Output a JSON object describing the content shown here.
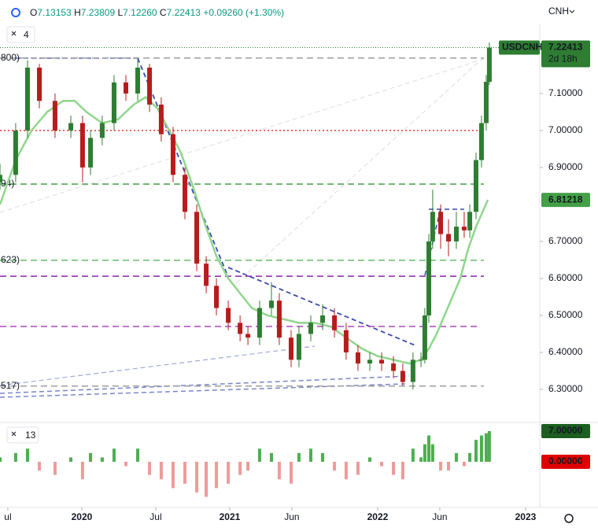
{
  "header": {
    "open": {
      "prefix": "O",
      "value": "7.13153"
    },
    "high": {
      "prefix": "H",
      "value": "7.23809"
    },
    "low": {
      "prefix": "L",
      "value": "7.12260"
    },
    "close": {
      "prefix": "C",
      "value": "7.22413"
    },
    "change": "+0.09260",
    "change_pct": "(+1.30%)",
    "currency": "CNH",
    "layers": "4"
  },
  "chart_data": {
    "type": "candlestick",
    "symbol": "USDCNH",
    "countdown": "2d 18h",
    "x": [
      2019.447,
      2019.553,
      2019.633,
      2019.713,
      2019.819,
      2019.926,
      2020.005,
      2020.059,
      2020.138,
      2020.218,
      2020.298,
      2020.378,
      2020.458,
      2020.537,
      2020.617,
      2020.697,
      2020.777,
      2020.841,
      2020.91,
      2020.99,
      2021.07,
      2021.123,
      2021.202,
      2021.282,
      2021.335,
      2021.415,
      2021.468,
      2021.548,
      2021.628,
      2021.708,
      2021.787,
      2021.867,
      2021.947,
      2022.027,
      2022.107,
      2022.17,
      2022.239,
      2022.293,
      2022.319,
      2022.346,
      2022.372,
      2022.426,
      2022.479,
      2022.532,
      2022.585,
      2022.623,
      2022.665,
      2022.702,
      2022.734,
      2022.755
    ],
    "open": [
      6.86,
      6.88,
      7.0,
      7.17,
      7.08,
      7.0,
      7.02,
      6.9,
      6.98,
      7.02,
      7.13,
      7.1,
      7.17,
      7.07,
      6.99,
      6.88,
      6.78,
      6.64,
      6.58,
      6.52,
      6.48,
      6.45,
      6.44,
      6.52,
      6.54,
      6.44,
      6.38,
      6.45,
      6.48,
      6.5,
      6.46,
      6.4,
      6.37,
      6.38,
      6.37,
      6.35,
      6.32,
      6.38,
      6.38,
      6.5,
      6.7,
      6.78,
      6.72,
      6.7,
      6.74,
      6.73,
      6.78,
      6.92,
      7.02,
      7.13153
    ],
    "high": [
      6.91,
      7.02,
      7.19,
      7.18,
      7.1,
      7.04,
      7.04,
      7.0,
      7.04,
      7.15,
      7.15,
      7.19,
      7.18,
      7.09,
      7.01,
      6.9,
      6.8,
      6.66,
      6.6,
      6.54,
      6.5,
      6.47,
      6.54,
      6.59,
      6.56,
      6.46,
      6.47,
      6.5,
      6.53,
      6.52,
      6.48,
      6.42,
      6.4,
      6.4,
      6.39,
      6.37,
      6.4,
      6.4,
      6.52,
      6.72,
      6.84,
      6.8,
      6.76,
      6.78,
      6.78,
      6.8,
      6.94,
      7.04,
      7.15,
      7.23809
    ],
    "low": [
      6.84,
      6.86,
      6.98,
      7.06,
      6.98,
      6.98,
      6.86,
      6.88,
      6.96,
      7.0,
      7.08,
      7.08,
      7.05,
      6.97,
      6.86,
      6.76,
      6.62,
      6.56,
      6.5,
      6.46,
      6.43,
      6.42,
      6.42,
      6.5,
      6.42,
      6.36,
      6.36,
      6.43,
      6.46,
      6.44,
      6.38,
      6.35,
      6.35,
      6.35,
      6.33,
      6.31,
      6.3,
      6.36,
      6.37,
      6.48,
      6.68,
      6.68,
      6.66,
      6.68,
      6.71,
      6.71,
      6.76,
      6.9,
      7.0,
      7.1226
    ],
    "close": [
      6.88,
      7.0,
      7.17,
      7.08,
      7.0,
      7.02,
      6.9,
      6.98,
      7.02,
      7.13,
      7.1,
      7.17,
      7.07,
      6.99,
      6.88,
      6.78,
      6.64,
      6.58,
      6.52,
      6.48,
      6.45,
      6.44,
      6.52,
      6.54,
      6.44,
      6.38,
      6.45,
      6.48,
      6.5,
      6.46,
      6.4,
      6.37,
      6.38,
      6.37,
      6.35,
      6.32,
      6.38,
      6.38,
      6.5,
      6.7,
      6.78,
      6.72,
      6.7,
      6.74,
      6.73,
      6.78,
      6.92,
      7.02,
      7.13153,
      7.22413
    ],
    "last_label": "7.22413",
    "up_color": "#2e7d32",
    "down_color": "#b71c1c",
    "moving_average": {
      "color": "#8fd68c",
      "label": "6.81218",
      "x": [
        2019.447,
        2019.553,
        2019.66,
        2019.766,
        2019.873,
        2019.952,
        2020.032,
        2020.138,
        2020.245,
        2020.351,
        2020.431,
        2020.511,
        2020.591,
        2020.67,
        2020.75,
        2020.83,
        2020.91,
        2020.99,
        2021.07,
        2021.149,
        2021.255,
        2021.362,
        2021.468,
        2021.575,
        2021.681,
        2021.787,
        2021.894,
        2022.0,
        2022.107,
        2022.213,
        2022.293,
        2022.346,
        2022.399,
        2022.452,
        2022.505,
        2022.559,
        2022.612,
        2022.665,
        2022.745
      ],
      "values": [
        6.8,
        6.92,
        7.0,
        7.05,
        7.08,
        7.08,
        7.05,
        7.02,
        7.03,
        7.07,
        7.09,
        7.06,
        7.0,
        6.94,
        6.85,
        6.75,
        6.66,
        6.6,
        6.56,
        6.52,
        6.5,
        6.49,
        6.48,
        6.48,
        6.47,
        6.44,
        6.41,
        6.39,
        6.38,
        6.37,
        6.38,
        6.41,
        6.45,
        6.5,
        6.55,
        6.6,
        6.68,
        6.74,
        6.81218
      ]
    },
    "hlines": [
      {
        "value": 7.196,
        "color": "#9e9e9e",
        "style": "dashed",
        "label": "800)"
      },
      {
        "value": 7.0,
        "color": "#e53935",
        "style": "dotted"
      },
      {
        "value": 6.855,
        "color": "#43a047",
        "style": "dashed",
        "label": "94)"
      },
      {
        "value": 6.649,
        "color": "#66bb6a",
        "style": "dashed",
        "label": "623)"
      },
      {
        "value": 6.606,
        "color": "#8e24aa",
        "style": "dashed"
      },
      {
        "value": 6.47,
        "color": "#ab47bc",
        "style": "dashed"
      },
      {
        "value": 6.309,
        "color": "#9e9e9e",
        "style": "dashed",
        "label": "517)"
      }
    ],
    "xlim": [
      2019.447,
      2023.096
    ],
    "xticks": [
      {
        "value": 2019.5,
        "label": "ul"
      },
      2020,
      {
        "value": 2020.5,
        "label": "Jul"
      },
      2021,
      {
        "value": 2021.42,
        "label": "Jun"
      },
      2022,
      {
        "value": 2022.42,
        "label": "Jun"
      },
      2023
    ],
    "ylim": [
      6.2255,
      7.289
    ],
    "yticks": [
      {
        "value": 7.1,
        "label": "7.10000"
      },
      {
        "value": 7.0,
        "label": "7.00000"
      },
      {
        "value": 6.9,
        "label": "6.90000"
      },
      {
        "value": 6.7,
        "label": "6.70000"
      },
      {
        "value": 6.6,
        "label": "6.60000"
      },
      {
        "value": 6.5,
        "label": "6.50000"
      },
      {
        "value": 6.4,
        "label": "6.40000"
      },
      {
        "value": 6.3,
        "label": "6.30000"
      }
    ],
    "indicator": {
      "label": "13",
      "up_color": "#4caf50",
      "down_color": "#ef9a9a",
      "values": [
        1,
        2,
        3,
        -2,
        -3,
        1,
        -4,
        2,
        1,
        3,
        -1,
        3,
        -3,
        -4,
        -6,
        -5,
        -7,
        -8,
        -6,
        -5,
        -3,
        -2,
        3,
        2,
        -4,
        -5,
        2,
        3,
        2,
        -2,
        -4,
        -3,
        1,
        -1,
        -3,
        -4,
        3,
        1,
        4,
        6,
        4,
        -2,
        -2,
        2,
        -1,
        2,
        5,
        6,
        6.5,
        7
      ],
      "y2lim": [
        -10.41,
        8.8
      ],
      "tags": [
        {
          "value": 7,
          "label": "7.00000",
          "color": "#1b5e20"
        },
        {
          "value": 0,
          "label": "0.00000",
          "color": "#e00000"
        }
      ]
    }
  }
}
